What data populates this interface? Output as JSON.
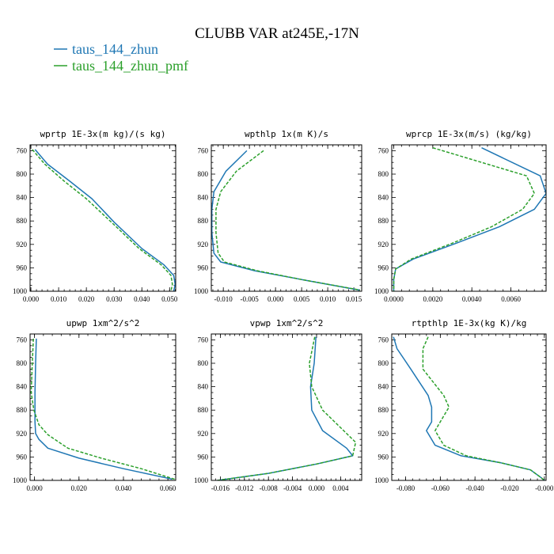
{
  "title": "CLUBB VAR at245E,-17N",
  "legend": [
    {
      "name": "taus_144_zhun",
      "color": "#1f77b4"
    },
    {
      "name": "taus_144_zhun_pmf",
      "color": "#2ca02c"
    }
  ],
  "chart_data": [
    {
      "type": "line",
      "title": "wprtp  1E-3x(m kg)/(s kg)",
      "xlim": [
        -0.0003,
        0.0522
      ],
      "ylim": [
        1000,
        750
      ],
      "xticks": [
        0.0,
        0.01,
        0.02,
        0.03,
        0.04,
        0.05
      ],
      "xtick_labels": [
        "0.000",
        "0.010",
        "0.020",
        "0.030",
        "0.040",
        "0.050"
      ],
      "yticks": [
        760,
        800,
        840,
        880,
        920,
        960,
        1000
      ],
      "ytick_labels": [
        "760",
        "800",
        "840",
        "880",
        "920",
        "960",
        "1000"
      ],
      "series": [
        {
          "name": "taus_144_zhun",
          "style": "solid",
          "x": [
            0.0015,
            0.006,
            0.014,
            0.022,
            0.03,
            0.04,
            0.048,
            0.0515,
            0.052,
            0.0515
          ],
          "y": [
            758,
            783,
            812,
            842,
            882,
            927,
            955,
            973,
            988,
            1000
          ]
        },
        {
          "name": "taus_144_zhun_pmf",
          "style": "dashed",
          "x": [
            0.0005,
            0.005,
            0.012,
            0.02,
            0.029,
            0.039,
            0.047,
            0.0505,
            0.051,
            0.0505
          ],
          "y": [
            758,
            783,
            812,
            842,
            882,
            927,
            955,
            973,
            988,
            1000
          ]
        }
      ]
    },
    {
      "type": "line",
      "title": "wpthlp  1x(m K)/s",
      "xlim": [
        -0.0123,
        0.0165
      ],
      "ylim": [
        1000,
        750
      ],
      "xticks": [
        -0.01,
        -0.005,
        0.0,
        0.005,
        0.01,
        0.015
      ],
      "xtick_labels": [
        "-0.010",
        "-0.005",
        "0.000",
        "0.005",
        "0.010",
        "0.015"
      ],
      "yticks": [
        760,
        800,
        840,
        880,
        920,
        960,
        1000
      ],
      "ytick_labels": [
        "760",
        "800",
        "840",
        "880",
        "920",
        "960",
        "1000"
      ],
      "series": [
        {
          "name": "taus_144_zhun",
          "style": "solid",
          "x": [
            -0.0055,
            -0.0095,
            -0.0118,
            -0.0122,
            -0.0122,
            -0.0118,
            -0.0105,
            -0.004,
            0.005,
            0.016
          ],
          "y": [
            760,
            795,
            830,
            860,
            900,
            935,
            950,
            965,
            980,
            998
          ]
        },
        {
          "name": "taus_144_zhun_pmf",
          "style": "dashed",
          "x": [
            -0.0023,
            -0.0075,
            -0.0105,
            -0.0114,
            -0.0114,
            -0.011,
            -0.0098,
            -0.0035,
            0.005,
            0.0162
          ],
          "y": [
            760,
            795,
            830,
            860,
            900,
            935,
            950,
            965,
            980,
            998
          ]
        }
      ]
    },
    {
      "type": "line",
      "title": "wprcp  1E-3x(m/s) (kg/kg)",
      "xlim": [
        -0.0001,
        0.0078
      ],
      "ylim": [
        1000,
        750
      ],
      "xticks": [
        0.0,
        0.002,
        0.004,
        0.006
      ],
      "xtick_labels": [
        "0.0000",
        "0.0020",
        "0.0040",
        "0.0060"
      ],
      "yticks": [
        760,
        800,
        840,
        880,
        920,
        960,
        1000
      ],
      "ytick_labels": [
        "760",
        "800",
        "840",
        "880",
        "920",
        "960",
        "1000"
      ],
      "series": [
        {
          "name": "taus_144_zhun",
          "style": "solid",
          "x": [
            0.0045,
            0.0075,
            0.0078,
            0.0072,
            0.0054,
            0.0032,
            0.001,
            0.0001,
            0.0,
            0.0
          ],
          "y": [
            755,
            803,
            833,
            860,
            890,
            918,
            945,
            962,
            980,
            1000
          ]
        },
        {
          "name": "taus_144_zhun_pmf",
          "style": "dashed",
          "x": [
            0.002,
            0.0068,
            0.0072,
            0.0066,
            0.005,
            0.003,
            0.0009,
            0.0001,
            0.0,
            0.0
          ],
          "y": [
            755,
            803,
            833,
            860,
            890,
            918,
            945,
            962,
            980,
            1000
          ]
        }
      ]
    },
    {
      "type": "line",
      "title": "upwp  1xm^2/s^2",
      "xlim": [
        -0.002,
        0.0635
      ],
      "ylim": [
        1000,
        750
      ],
      "xticks": [
        0.0,
        0.02,
        0.04,
        0.06
      ],
      "xtick_labels": [
        "0.000",
        "0.020",
        "0.040",
        "0.060"
      ],
      "yticks": [
        760,
        800,
        840,
        880,
        920,
        960,
        1000
      ],
      "ytick_labels": [
        "760",
        "800",
        "840",
        "880",
        "920",
        "960",
        "1000"
      ],
      "series": [
        {
          "name": "taus_144_zhun",
          "style": "solid",
          "x": [
            0.0008,
            0.0005,
            0.0002,
            0.0002,
            0.0005,
            0.002,
            0.006,
            0.02,
            0.04,
            0.062
          ],
          "y": [
            758,
            800,
            850,
            900,
            920,
            930,
            945,
            962,
            980,
            998
          ]
        },
        {
          "name": "taus_144_zhun_pmf",
          "style": "dashed",
          "x": [
            -0.0005,
            -0.001,
            -0.0015,
            -0.0003,
            0.002,
            0.006,
            0.015,
            0.03,
            0.048,
            0.063
          ],
          "y": [
            758,
            800,
            850,
            880,
            905,
            922,
            945,
            962,
            980,
            998
          ]
        }
      ]
    },
    {
      "type": "line",
      "title": "vpwp  1xm^2/s^2",
      "xlim": [
        -0.0175,
        0.0075
      ],
      "ylim": [
        1000,
        750
      ],
      "xticks": [
        -0.016,
        -0.012,
        -0.008,
        -0.004,
        0.0,
        0.004
      ],
      "xtick_labels": [
        "-0.016",
        "-0.012",
        "-0.008",
        "-0.004",
        "0.000",
        "0.004"
      ],
      "yticks": [
        760,
        800,
        840,
        880,
        920,
        960,
        1000
      ],
      "ytick_labels": [
        "760",
        "800",
        "840",
        "880",
        "920",
        "960",
        "1000"
      ],
      "series": [
        {
          "name": "taus_144_zhun",
          "style": "solid",
          "x": [
            -0.0001,
            -0.0004,
            -0.001,
            -0.0008,
            0.001,
            0.005,
            0.006,
            0.0,
            -0.008,
            -0.0165
          ],
          "y": [
            755,
            800,
            840,
            880,
            915,
            945,
            958,
            972,
            988,
            1000
          ]
        },
        {
          "name": "taus_144_zhun_pmf",
          "style": "dashed",
          "x": [
            -0.0003,
            -0.0012,
            -0.0008,
            0.001,
            0.004,
            0.0065,
            0.006,
            0.0,
            -0.008,
            -0.0165
          ],
          "y": [
            755,
            800,
            840,
            880,
            910,
            935,
            958,
            972,
            988,
            1000
          ]
        }
      ]
    },
    {
      "type": "line",
      "title": "rtpthlp  1E-3x(kg K)/kg",
      "xlim": [
        -0.088,
        0.001
      ],
      "ylim": [
        1000,
        750
      ],
      "xticks": [
        -0.08,
        -0.06,
        -0.04,
        -0.02,
        0.0
      ],
      "xtick_labels": [
        "-0.080",
        "-0.060",
        "-0.040",
        "-0.020",
        "-0.000"
      ],
      "yticks": [
        760,
        800,
        840,
        880,
        920,
        960,
        1000
      ],
      "ytick_labels": [
        "760",
        "800",
        "840",
        "880",
        "920",
        "960",
        "1000"
      ],
      "series": [
        {
          "name": "taus_144_zhun",
          "style": "solid",
          "x": [
            -0.087,
            -0.085,
            -0.077,
            -0.067,
            -0.065,
            -0.065,
            -0.068,
            -0.063,
            -0.048,
            -0.025,
            -0.008,
            -0.002,
            0.0
          ],
          "y": [
            755,
            775,
            810,
            855,
            875,
            900,
            915,
            940,
            958,
            970,
            982,
            995,
            1000
          ]
        },
        {
          "name": "taus_144_zhun_pmf",
          "style": "dashed",
          "x": [
            -0.067,
            -0.07,
            -0.07,
            -0.058,
            -0.055,
            -0.06,
            -0.063,
            -0.058,
            -0.045,
            -0.025,
            -0.008,
            -0.002,
            0.0
          ],
          "y": [
            755,
            775,
            810,
            855,
            875,
            900,
            915,
            940,
            958,
            970,
            982,
            995,
            1000
          ]
        }
      ]
    }
  ],
  "colors": {
    "series_1": "#1f77b4",
    "series_2": "#2ca02c"
  }
}
